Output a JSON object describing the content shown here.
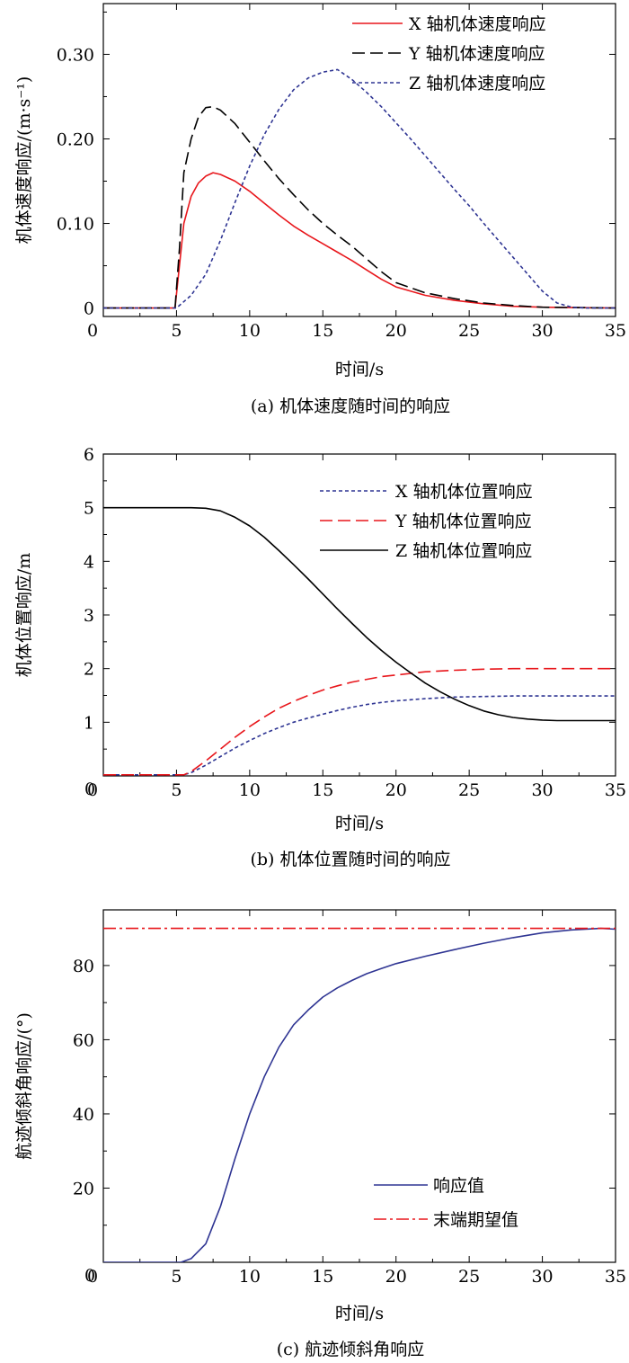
{
  "chart_data": [
    {
      "type": "line",
      "caption": "(a) 机体速度随时间的响应",
      "xlabel": "时间/s",
      "ylabel": "机体速度响应/(m·s⁻¹)",
      "xlim": [
        0,
        35
      ],
      "ylim": [
        -0.01,
        0.36
      ],
      "xticks": [
        0,
        5,
        10,
        15,
        20,
        25,
        30,
        35
      ],
      "yticks": [
        0,
        0.1,
        0.2,
        0.3
      ],
      "ytick_labels": [
        "0",
        "0.10",
        "0.20",
        "0.30"
      ],
      "legend": "top-right",
      "series": [
        {
          "name": "X 轴机体速度响应",
          "color": "#e8161b",
          "dash": "solid",
          "x": [
            0,
            4.9,
            5.2,
            5.5,
            6,
            6.5,
            7,
            7.5,
            8,
            9,
            10,
            11,
            12,
            13,
            14,
            15,
            16,
            17,
            18,
            19,
            20,
            22,
            24,
            26,
            28,
            30,
            35
          ],
          "y": [
            0,
            0,
            0.05,
            0.1,
            0.132,
            0.148,
            0.156,
            0.16,
            0.158,
            0.15,
            0.138,
            0.124,
            0.11,
            0.097,
            0.086,
            0.076,
            0.066,
            0.056,
            0.045,
            0.034,
            0.025,
            0.015,
            0.009,
            0.005,
            0.002,
            0.001,
            0
          ]
        },
        {
          "name": "Y 轴机体速度响应",
          "color": "#000000",
          "dash": "14 6",
          "x": [
            0,
            4.9,
            5.2,
            5.5,
            6,
            6.5,
            7,
            7.5,
            8,
            9,
            10,
            11,
            12,
            13,
            14,
            15,
            16,
            17,
            18,
            19,
            20,
            22,
            24,
            26,
            28,
            30,
            35
          ],
          "y": [
            0,
            0,
            0.07,
            0.16,
            0.2,
            0.226,
            0.237,
            0.238,
            0.234,
            0.218,
            0.196,
            0.174,
            0.153,
            0.134,
            0.116,
            0.1,
            0.086,
            0.073,
            0.058,
            0.043,
            0.03,
            0.018,
            0.011,
            0.006,
            0.003,
            0.001,
            0
          ]
        },
        {
          "name": "Z 轴机体速度响应",
          "color": "#2f3593",
          "dash": "4 3",
          "x": [
            0,
            5,
            6,
            7,
            8,
            9,
            10,
            11,
            12,
            13,
            14,
            15,
            16,
            17,
            18,
            19,
            20,
            21,
            22,
            23,
            24,
            25,
            26,
            27,
            28,
            29,
            30,
            31,
            32,
            33,
            35
          ],
          "y": [
            0,
            0,
            0.015,
            0.04,
            0.08,
            0.125,
            0.168,
            0.205,
            0.235,
            0.258,
            0.272,
            0.279,
            0.282,
            0.27,
            0.255,
            0.238,
            0.219,
            0.2,
            0.18,
            0.16,
            0.14,
            0.121,
            0.1,
            0.08,
            0.06,
            0.04,
            0.02,
            0.006,
            0.001,
            0,
            0
          ]
        }
      ]
    },
    {
      "type": "line",
      "caption": "(b) 机体位置随时间的响应",
      "xlabel": "时间/s",
      "ylabel": "机体位置响应/m",
      "xlim": [
        0,
        35
      ],
      "ylim": [
        0,
        6
      ],
      "xticks": [
        0,
        5,
        10,
        15,
        20,
        25,
        30,
        35
      ],
      "yticks": [
        1,
        2,
        3,
        4,
        5,
        6
      ],
      "ytick_labels": [
        "1",
        "2",
        "3",
        "4",
        "5",
        "6"
      ],
      "legend": "top-right",
      "series": [
        {
          "name": "X 轴机体位置响应",
          "color": "#2f3593",
          "dash": "4 3",
          "x": [
            0,
            5.5,
            6,
            7,
            8,
            9,
            10,
            11,
            12,
            13,
            14,
            15,
            16,
            17,
            18,
            19,
            20,
            22,
            24,
            26,
            28,
            30,
            35
          ],
          "y": [
            0.02,
            0.02,
            0.06,
            0.2,
            0.36,
            0.52,
            0.66,
            0.79,
            0.9,
            1.0,
            1.08,
            1.15,
            1.22,
            1.28,
            1.33,
            1.37,
            1.4,
            1.44,
            1.47,
            1.48,
            1.49,
            1.49,
            1.49
          ]
        },
        {
          "name": "Y 轴机体位置响应",
          "color": "#e8161b",
          "dash": "14 6",
          "x": [
            0,
            5.5,
            6,
            7,
            8,
            9,
            10,
            11,
            12,
            13,
            14,
            15,
            16,
            17,
            18,
            19,
            20,
            22,
            24,
            26,
            28,
            30,
            35
          ],
          "y": [
            0.02,
            0.02,
            0.08,
            0.28,
            0.5,
            0.72,
            0.92,
            1.1,
            1.26,
            1.39,
            1.5,
            1.6,
            1.68,
            1.75,
            1.8,
            1.85,
            1.88,
            1.94,
            1.97,
            1.99,
            2.0,
            2.0,
            2.0
          ]
        },
        {
          "name": "Z 轴机体位置响应",
          "color": "#000000",
          "dash": "solid",
          "x": [
            0,
            5,
            6,
            7,
            8,
            9,
            10,
            11,
            12,
            13,
            14,
            15,
            16,
            17,
            18,
            19,
            20,
            21,
            22,
            23,
            24,
            25,
            26,
            27,
            28,
            29,
            30,
            31,
            35
          ],
          "y": [
            5.0,
            5.0,
            5.0,
            4.99,
            4.94,
            4.82,
            4.66,
            4.45,
            4.2,
            3.94,
            3.67,
            3.39,
            3.11,
            2.84,
            2.58,
            2.34,
            2.12,
            1.92,
            1.73,
            1.57,
            1.43,
            1.31,
            1.21,
            1.14,
            1.09,
            1.06,
            1.04,
            1.03,
            1.03
          ]
        }
      ]
    },
    {
      "type": "line",
      "caption": "(c) 航迹倾斜角响应",
      "xlabel": "时间/s",
      "ylabel": "航迹倾斜角响应/(°)",
      "xlim": [
        0,
        35
      ],
      "ylim": [
        0,
        95
      ],
      "xticks": [
        0,
        5,
        10,
        15,
        20,
        25,
        30,
        35
      ],
      "yticks": [
        20,
        40,
        60,
        80
      ],
      "ytick_labels": [
        "20",
        "40",
        "60",
        "80"
      ],
      "legend": "bottom-right",
      "series": [
        {
          "name": "响应值",
          "color": "#2f3593",
          "dash": "solid",
          "x": [
            0,
            5.3,
            6,
            7,
            8,
            9,
            10,
            11,
            12,
            13,
            14,
            15,
            16,
            17,
            18,
            19,
            20,
            22,
            24,
            26,
            28,
            30,
            32,
            34,
            35
          ],
          "y": [
            0,
            0,
            1,
            5,
            15,
            28,
            40,
            50,
            58,
            64,
            68,
            71.5,
            74,
            76,
            77.8,
            79.2,
            80.5,
            82.5,
            84.3,
            86,
            87.5,
            88.8,
            89.6,
            90,
            89.8
          ]
        },
        {
          "name": "末端期望值",
          "color": "#e8161b",
          "dash": "14 4 3 4",
          "x": [
            0,
            35
          ],
          "y": [
            90,
            90
          ]
        }
      ]
    }
  ]
}
